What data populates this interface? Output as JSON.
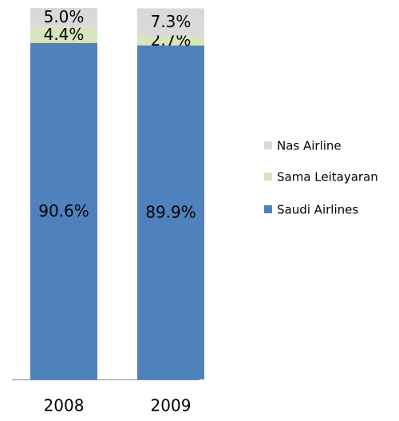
{
  "chart_data": {
    "type": "stacked_bar",
    "categories": [
      "2008",
      "2009"
    ],
    "series": [
      {
        "name": "Saudi Airlines",
        "color": "#4f81bd",
        "values": [
          90.6,
          89.9
        ],
        "value_labels": [
          "90.6%",
          "89.9%"
        ]
      },
      {
        "name": "Sama Leitayaran",
        "color": "#d7e4bd",
        "values": [
          4.4,
          2.7
        ],
        "value_labels": [
          "4.4%",
          "2.7%"
        ]
      },
      {
        "name": "Nas Airline",
        "color": "#d9d9d9",
        "values": [
          5.0,
          7.3
        ],
        "value_labels": [
          "5.0%",
          "7.3%"
        ]
      }
    ],
    "ylim": [
      0,
      100
    ],
    "legend": "right"
  }
}
